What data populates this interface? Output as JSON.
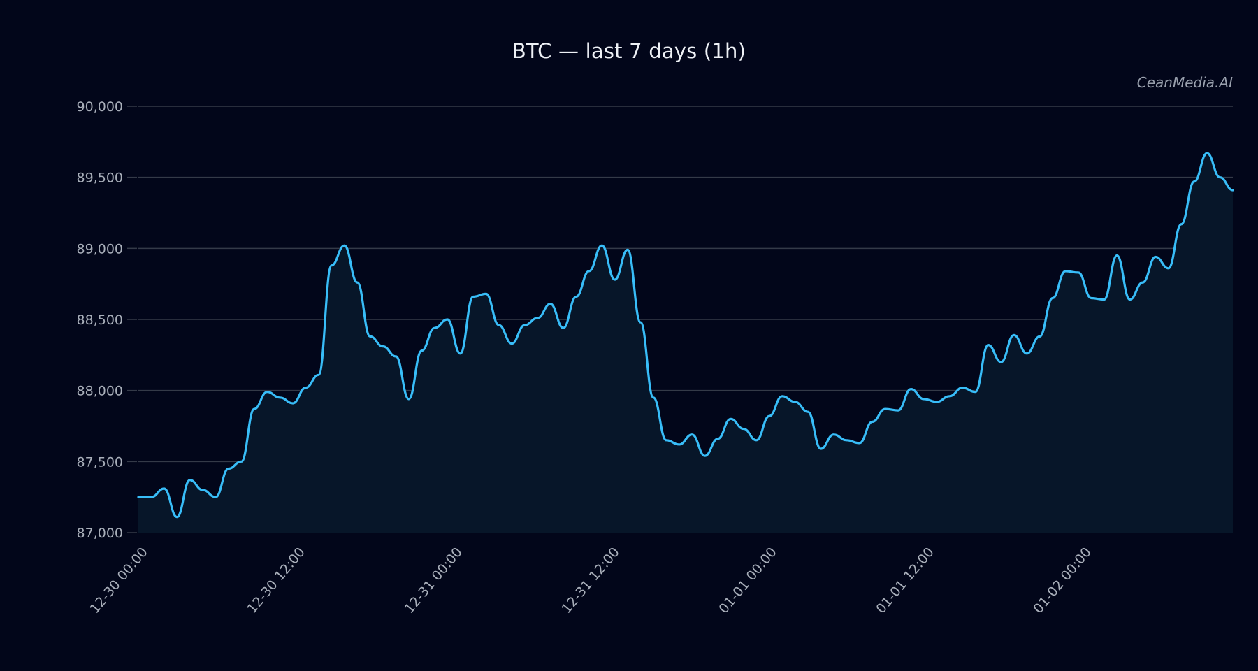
{
  "title": "BTC — last 7 days (1h)",
  "watermark": "CeanMedia.AI",
  "colors": {
    "background": "#02061a",
    "line": "#38bdf8",
    "fill": "#071629",
    "grid": "#343a48",
    "tick_text": "#a9afba"
  },
  "chart_data": {
    "type": "area",
    "title": "BTC — last 7 days (1h)",
    "xlabel": "",
    "ylabel": "",
    "ylim": [
      87000,
      90000
    ],
    "grid": true,
    "legend": null,
    "yticks": [
      87000,
      87500,
      88000,
      88500,
      89000,
      89500,
      90000
    ],
    "ytick_labels": [
      "87,000",
      "87,500",
      "88,000",
      "88,500",
      "89,000",
      "89,500",
      "90,000"
    ],
    "xticks_index": [
      0,
      12,
      24,
      36,
      48,
      60,
      72
    ],
    "xtick_labels": [
      "12-30 00:00",
      "12-30 12:00",
      "12-31 00:00",
      "12-31 12:00",
      "01-01 00:00",
      "01-01 12:00",
      "01-02 00:00"
    ],
    "x_start": "12-30 00:00",
    "x_step": "1h",
    "series": [
      {
        "name": "BTC",
        "values": [
          87250,
          87250,
          87310,
          87110,
          87370,
          87300,
          87250,
          87450,
          87500,
          87870,
          87990,
          87950,
          87910,
          88020,
          88110,
          88880,
          89020,
          88760,
          88380,
          88310,
          88240,
          87940,
          88280,
          88440,
          88500,
          88260,
          88660,
          88680,
          88460,
          88330,
          88460,
          88510,
          88610,
          88440,
          88660,
          88840,
          89020,
          88780,
          88990,
          88480,
          87950,
          87650,
          87620,
          87690,
          87540,
          87660,
          87800,
          87730,
          87650,
          87820,
          87960,
          87920,
          87850,
          87590,
          87690,
          87650,
          87630,
          87780,
          87870,
          87860,
          88010,
          87940,
          87920,
          87960,
          88020,
          87990,
          88320,
          88200,
          88390,
          88260,
          88380,
          88650,
          88840,
          88830,
          88650,
          88640,
          88950,
          88640,
          88760,
          88940,
          88860,
          89170,
          89470,
          89670,
          89500,
          89410
        ]
      }
    ]
  }
}
